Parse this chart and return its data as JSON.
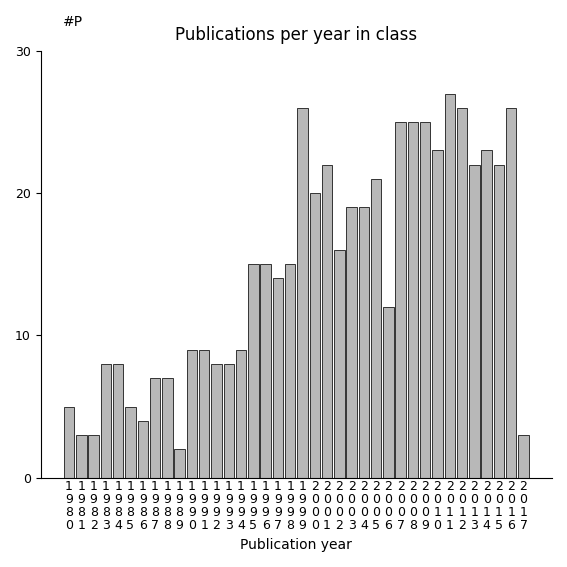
{
  "title": "Publications per year in class",
  "xlabel": "Publication year",
  "ylabel": "#P",
  "years": [
    "1980",
    "1981",
    "1982",
    "1983",
    "1984",
    "1985",
    "1986",
    "1987",
    "1988",
    "1989",
    "1990",
    "1991",
    "1992",
    "1993",
    "1994",
    "1995",
    "1996",
    "1997",
    "1998",
    "1999",
    "2000",
    "2001",
    "2002",
    "2003",
    "2004",
    "2005",
    "2006",
    "2007",
    "2008",
    "2009",
    "2010",
    "2011",
    "2012",
    "2013",
    "2014",
    "2015",
    "2016",
    "2017"
  ],
  "values": [
    5,
    3,
    3,
    8,
    8,
    5,
    4,
    7,
    7,
    2,
    9,
    9,
    8,
    8,
    9,
    15,
    15,
    14,
    15,
    26,
    20,
    22,
    16,
    19,
    19,
    21,
    12,
    25,
    25,
    25,
    23,
    27,
    26,
    22,
    23,
    22,
    26,
    3
  ],
  "bar_color": "#b8b8b8",
  "bar_edge_color": "#333333",
  "ylim": [
    0,
    30
  ],
  "yticks": [
    0,
    10,
    20,
    30
  ],
  "bg_color": "#ffffff",
  "title_fontsize": 12,
  "label_fontsize": 10,
  "tick_fontsize": 9
}
